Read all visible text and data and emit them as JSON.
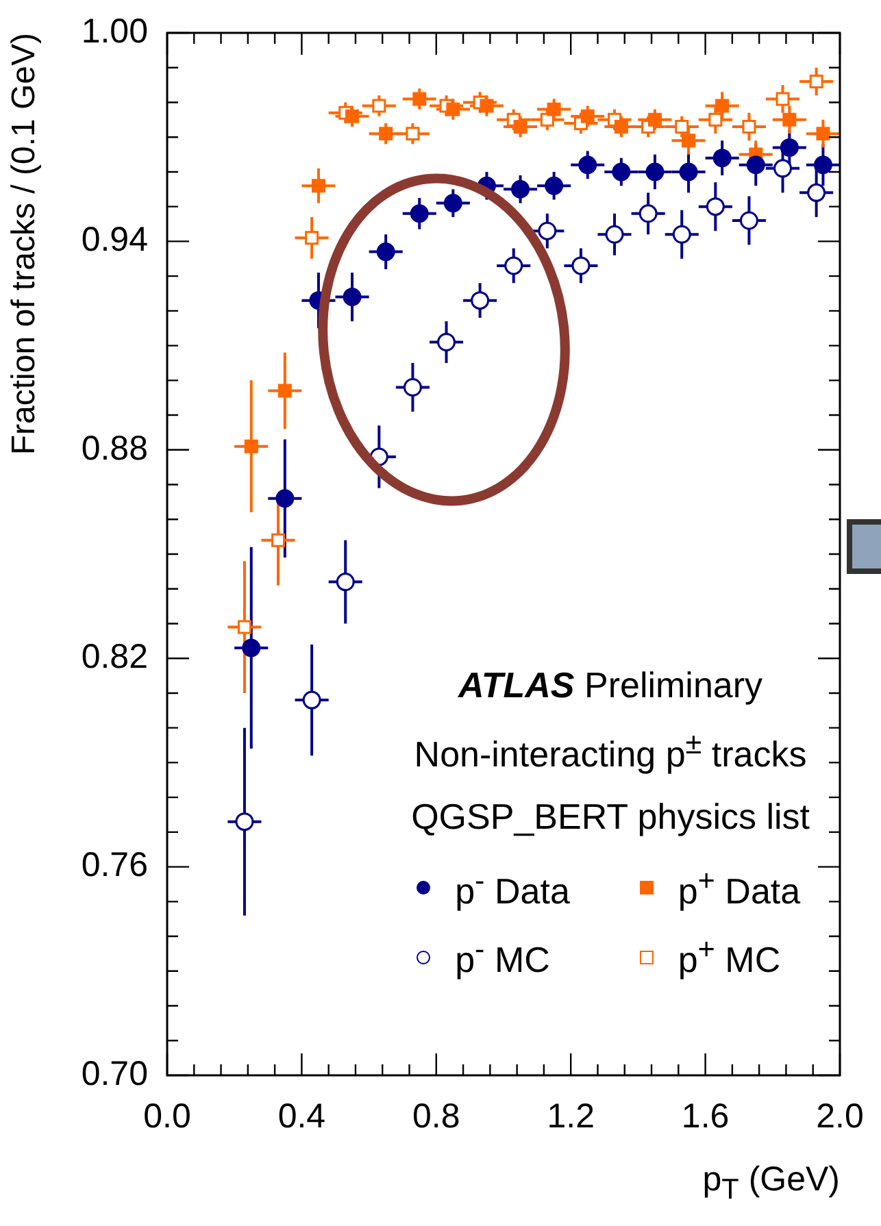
{
  "chart_data": {
    "type": "scatter",
    "xlabel": "p$_{T}$ (GeV)",
    "ylabel": "Fraction of tracks / (0.1 GeV)",
    "xlim": [
      0,
      2
    ],
    "ylim": [
      0.7,
      1.0
    ],
    "xticks": [
      {
        "value": 0,
        "label": "0.0"
      },
      {
        "value": 0.08,
        "label": null
      },
      {
        "value": 0.16,
        "label": null
      },
      {
        "value": 0.24,
        "label": null
      },
      {
        "value": 0.32,
        "label": null
      },
      0.4,
      {
        "value": 0.48,
        "label": null
      },
      {
        "value": 0.56,
        "label": null
      },
      {
        "value": 0.64,
        "label": null
      },
      {
        "value": 0.72,
        "label": null
      },
      0.8,
      {
        "value": 0.88,
        "label": null
      },
      {
        "value": 0.96,
        "label": null
      },
      {
        "value": 1.04,
        "label": null
      },
      {
        "value": 1.12,
        "label": null
      },
      1.2,
      {
        "value": 1.28,
        "label": null
      },
      {
        "value": 1.36,
        "label": null
      },
      {
        "value": 1.44,
        "label": null
      },
      {
        "value": 1.52,
        "label": null
      },
      1.6,
      {
        "value": 1.68,
        "label": null
      },
      {
        "value": 1.76,
        "label": null
      },
      {
        "value": 1.84,
        "label": null
      },
      {
        "value": 1.92,
        "label": null
      },
      {
        "value": 2,
        "label": "2.0"
      }
    ],
    "yticks": [
      {
        "value": 0.7,
        "label": "0.70"
      },
      {
        "value": 0.71,
        "label": null
      },
      {
        "value": 0.72,
        "label": null
      },
      {
        "value": 0.73,
        "label": null
      },
      {
        "value": 0.74,
        "label": null
      },
      {
        "value": 0.75,
        "label": null
      },
      0.76,
      {
        "value": 0.77,
        "label": null
      },
      {
        "value": 0.78,
        "label": null
      },
      {
        "value": 0.79,
        "label": null
      },
      {
        "value": 0.8,
        "label": null
      },
      {
        "value": 0.81,
        "label": null
      },
      0.82,
      {
        "value": 0.83,
        "label": null
      },
      {
        "value": 0.84,
        "label": null
      },
      {
        "value": 0.85,
        "label": null
      },
      {
        "value": 0.86,
        "label": null
      },
      {
        "value": 0.87,
        "label": null
      },
      0.88,
      {
        "value": 0.89,
        "label": null
      },
      {
        "value": 0.9,
        "label": null
      },
      {
        "value": 0.91,
        "label": null
      },
      {
        "value": 0.92,
        "label": null
      },
      {
        "value": 0.93,
        "label": null
      },
      0.94,
      {
        "value": 0.95,
        "label": null
      },
      {
        "value": 0.96,
        "label": null
      },
      {
        "value": 0.97,
        "label": null
      },
      {
        "value": 0.98,
        "label": null
      },
      {
        "value": 0.99,
        "label": null
      },
      {
        "value": 1.0,
        "label": "1.00"
      }
    ],
    "grid": false,
    "legend": "bottom right",
    "annotations": [
      "ATLAS Preliminary",
      "Non-interacting p$^{±}$ tracks",
      "QGSP_BERT physics list"
    ],
    "series": [
      {
        "name": "p$^{-}$ Data",
        "color": "#00008b",
        "marker": "circle",
        "x": [
          0.25,
          0.35,
          0.45,
          0.55,
          0.65,
          0.75,
          0.85,
          0.95,
          1.05,
          1.15,
          1.25,
          1.35,
          1.45,
          1.55,
          1.65,
          1.75,
          1.85,
          1.95
        ],
        "values": [
          0.823,
          0.866,
          0.923,
          0.924,
          0.937,
          0.948,
          0.951,
          0.956,
          0.955,
          0.956,
          0.962,
          0.96,
          0.96,
          0.96,
          0.964,
          0.962,
          0.967,
          0.962
        ],
        "errors": [
          0.029,
          0.017,
          0.008,
          0.007,
          0.005,
          0.0045,
          0.004,
          0.004,
          0.004,
          0.004,
          0.004,
          0.004,
          0.005,
          0.006,
          0.005,
          0.006,
          0.005,
          0.006
        ],
        "xerrors": [
          0.05,
          0.05,
          0.05,
          0.05,
          0.05,
          0.05,
          0.05,
          0.05,
          0.05,
          0.05,
          0.05,
          0.05,
          0.05,
          0.05,
          0.05,
          0.05,
          0.05,
          0.05
        ]
      },
      {
        "name": "p$^{+}$ Data",
        "color": "#ff6600",
        "marker": "square",
        "x": [
          0.25,
          0.35,
          0.45,
          0.55,
          0.65,
          0.75,
          0.85,
          0.95,
          1.05,
          1.15,
          1.25,
          1.35,
          1.45,
          1.55,
          1.65,
          1.75,
          1.85,
          1.95
        ],
        "values": [
          0.881,
          0.897,
          0.956,
          0.976,
          0.971,
          0.981,
          0.978,
          0.979,
          0.973,
          0.978,
          0.976,
          0.973,
          0.975,
          0.969,
          0.979,
          0.965,
          0.975,
          0.971
        ],
        "errors": [
          0.019,
          0.011,
          0.005,
          0.003,
          0.003,
          0.003,
          0.003,
          0.003,
          0.003,
          0.003,
          0.003,
          0.003,
          0.003,
          0.004,
          0.004,
          0.004,
          0.004,
          0.004
        ],
        "xerrors": [
          0.05,
          0.05,
          0.05,
          0.05,
          0.05,
          0.05,
          0.05,
          0.05,
          0.05,
          0.05,
          0.05,
          0.05,
          0.05,
          0.05,
          0.05,
          0.05,
          0.05,
          0.05
        ]
      },
      {
        "name": "p$^{-}$ MC",
        "color": "#00008b",
        "marker": "circle-open",
        "x": [
          0.23,
          0.43,
          0.53,
          0.63,
          0.73,
          0.83,
          0.93,
          1.03,
          1.13,
          1.23,
          1.33,
          1.43,
          1.53,
          1.63,
          1.73,
          1.83,
          1.93
        ],
        "values": [
          0.773,
          0.808,
          0.842,
          0.878,
          0.898,
          0.911,
          0.923,
          0.933,
          0.943,
          0.933,
          0.942,
          0.948,
          0.942,
          0.95,
          0.946,
          0.961,
          0.954
        ],
        "errors": [
          0.027,
          0.016,
          0.012,
          0.009,
          0.007,
          0.006,
          0.005,
          0.005,
          0.005,
          0.005,
          0.006,
          0.006,
          0.007,
          0.007,
          0.007,
          0.007,
          0.007
        ],
        "xerrors": [
          0.05,
          0.05,
          0.05,
          0.05,
          0.05,
          0.05,
          0.05,
          0.05,
          0.05,
          0.05,
          0.05,
          0.05,
          0.05,
          0.05,
          0.05,
          0.05,
          0.05
        ]
      },
      {
        "name": "p$^{+}$ MC",
        "color": "#ff6600",
        "marker": "square-open",
        "x": [
          0.23,
          0.33,
          0.43,
          0.53,
          0.63,
          0.73,
          0.83,
          0.93,
          1.03,
          1.13,
          1.23,
          1.33,
          1.43,
          1.53,
          1.63,
          1.73,
          1.83,
          1.93
        ],
        "values": [
          0.829,
          0.854,
          0.941,
          0.977,
          0.979,
          0.971,
          0.979,
          0.98,
          0.975,
          0.975,
          0.974,
          0.975,
          0.973,
          0.973,
          0.975,
          0.973,
          0.981,
          0.986
        ],
        "errors": [
          0.019,
          0.013,
          0.006,
          0.003,
          0.003,
          0.003,
          0.003,
          0.003,
          0.003,
          0.003,
          0.003,
          0.003,
          0.003,
          0.003,
          0.004,
          0.004,
          0.004,
          0.004
        ],
        "xerrors": [
          0.05,
          0.05,
          0.05,
          0.05,
          0.05,
          0.05,
          0.05,
          0.05,
          0.05,
          0.05,
          0.05,
          0.05,
          0.05,
          0.05,
          0.05,
          0.05,
          0.05,
          0.05
        ]
      }
    ]
  }
}
